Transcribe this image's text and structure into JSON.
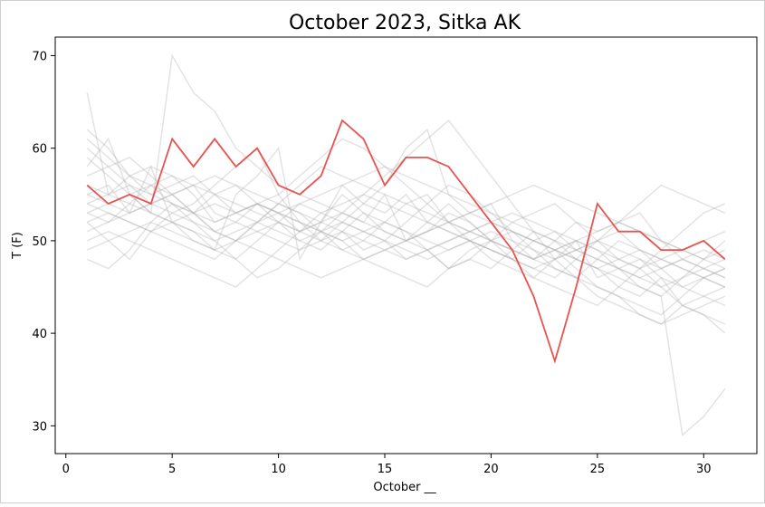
{
  "chart_data": {
    "type": "line",
    "title": "October 2023, Sitka AK",
    "xlabel": "October __",
    "ylabel": "T (F)",
    "xlim": [
      -0.5,
      32.5
    ],
    "ylim": [
      27,
      72
    ],
    "xticks": [
      0,
      5,
      10,
      15,
      20,
      25,
      30
    ],
    "yticks": [
      30,
      40,
      50,
      60,
      70
    ],
    "grid": false,
    "legend": "none",
    "colors": {
      "highlight": "#e8534f",
      "history": "#b0b0b0"
    },
    "x": [
      1,
      2,
      3,
      4,
      5,
      6,
      7,
      8,
      9,
      10,
      11,
      12,
      13,
      14,
      15,
      16,
      17,
      18,
      19,
      20,
      21,
      22,
      23,
      24,
      25,
      26,
      27,
      28,
      29,
      30,
      31
    ],
    "highlight_series": {
      "values": [
        56,
        54,
        55,
        54,
        61,
        58,
        61,
        58,
        60,
        56,
        55,
        57,
        63,
        61,
        56,
        59,
        59,
        58,
        55,
        52,
        49,
        44,
        37,
        45,
        54,
        51,
        51,
        49,
        49,
        50,
        48
      ]
    },
    "background_series": [
      {
        "values": [
          66,
          55,
          57,
          56,
          57,
          55,
          52,
          53,
          54,
          53,
          51,
          52,
          55,
          53,
          52,
          54,
          55,
          52,
          53,
          54,
          50,
          48,
          49,
          50,
          46,
          47,
          48,
          46,
          45,
          44,
          43
        ]
      },
      {
        "values": [
          48,
          47,
          49,
          52,
          54,
          53,
          55,
          56,
          54,
          53,
          52,
          50,
          51,
          49,
          50,
          48,
          49,
          47,
          48,
          47,
          49,
          51,
          50,
          48,
          47,
          45,
          44,
          46,
          43,
          42,
          40
        ]
      },
      {
        "values": [
          58,
          61,
          55,
          53,
          70,
          66,
          64,
          60,
          58,
          56,
          55,
          54,
          53,
          52,
          55,
          50,
          51,
          53,
          52,
          50,
          49,
          48,
          50,
          52,
          51,
          52,
          53,
          50,
          48,
          47,
          46
        ]
      },
      {
        "values": [
          55,
          56,
          53,
          58,
          52,
          51,
          49,
          55,
          57,
          60,
          48,
          52,
          56,
          54,
          53,
          55,
          52,
          51,
          50,
          49,
          48,
          50,
          51,
          49,
          50,
          48,
          47,
          45,
          43,
          42,
          41
        ]
      },
      {
        "values": [
          52,
          50,
          48,
          51,
          53,
          54,
          56,
          58,
          60,
          55,
          52,
          51,
          50,
          48,
          47,
          46,
          45,
          47,
          49,
          50,
          52,
          53,
          54,
          52,
          50,
          51,
          49,
          48,
          47,
          46,
          45
        ]
      },
      {
        "values": [
          62,
          60,
          57,
          58,
          57,
          56,
          53,
          52,
          51,
          50,
          49,
          50,
          52,
          54,
          56,
          60,
          62,
          55,
          53,
          52,
          51,
          50,
          49,
          48,
          47,
          46,
          45,
          44,
          29,
          31,
          34
        ]
      },
      {
        "values": [
          54,
          53,
          52,
          51,
          50,
          49,
          48,
          50,
          52,
          54,
          56,
          58,
          57,
          56,
          55,
          54,
          53,
          52,
          51,
          50,
          49,
          48,
          47,
          46,
          45,
          44,
          43,
          42,
          44,
          46,
          47
        ]
      },
      {
        "values": [
          57,
          58,
          59,
          57,
          55,
          53,
          51,
          52,
          54,
          55,
          57,
          59,
          61,
          60,
          58,
          56,
          54,
          52,
          50,
          48,
          47,
          46,
          45,
          44,
          43,
          45,
          47,
          49,
          51,
          53,
          54
        ]
      },
      {
        "values": [
          51,
          52,
          53,
          54,
          55,
          56,
          57,
          56,
          55,
          54,
          53,
          52,
          51,
          50,
          49,
          48,
          49,
          50,
          51,
          52,
          53,
          52,
          51,
          50,
          49,
          48,
          47,
          48,
          49,
          50,
          51
        ]
      },
      {
        "values": [
          59,
          57,
          55,
          53,
          52,
          50,
          49,
          48,
          50,
          52,
          54,
          53,
          52,
          51,
          50,
          52,
          54,
          56,
          55,
          53,
          51,
          50,
          49,
          47,
          45,
          44,
          42,
          41,
          43,
          44,
          45
        ]
      },
      {
        "values": [
          53,
          54,
          55,
          56,
          54,
          52,
          50,
          48,
          46,
          47,
          49,
          51,
          53,
          55,
          57,
          59,
          61,
          63,
          60,
          57,
          54,
          51,
          48,
          46,
          44,
          43,
          42,
          41,
          42,
          43,
          44
        ]
      },
      {
        "values": [
          50,
          51,
          50,
          49,
          48,
          47,
          46,
          45,
          47,
          49,
          51,
          53,
          54,
          55,
          54,
          53,
          52,
          51,
          50,
          49,
          48,
          47,
          46,
          48,
          50,
          52,
          54,
          56,
          55,
          54,
          53
        ]
      },
      {
        "values": [
          56,
          55,
          54,
          53,
          52,
          51,
          50,
          51,
          52,
          53,
          54,
          55,
          56,
          57,
          58,
          57,
          56,
          55,
          54,
          53,
          52,
          51,
          50,
          49,
          48,
          47,
          46,
          45,
          46,
          47,
          48
        ]
      },
      {
        "values": [
          60,
          58,
          56,
          54,
          53,
          52,
          51,
          50,
          49,
          48,
          47,
          46,
          47,
          48,
          49,
          50,
          51,
          52,
          53,
          54,
          55,
          56,
          55,
          54,
          53,
          52,
          51,
          50,
          49,
          48,
          47
        ]
      },
      {
        "values": [
          49,
          50,
          51,
          52,
          51,
          50,
          49,
          50,
          51,
          52,
          51,
          50,
          49,
          48,
          49,
          50,
          51,
          52,
          51,
          50,
          49,
          48,
          49,
          50,
          51,
          52,
          51,
          50,
          49,
          48,
          49
        ]
      },
      {
        "values": [
          52,
          53,
          52,
          51,
          52,
          53,
          54,
          53,
          52,
          51,
          50,
          51,
          52,
          51,
          50,
          49,
          48,
          49,
          50,
          49,
          48,
          47,
          48,
          49,
          48,
          47,
          46,
          47,
          48,
          47,
          46
        ]
      },
      {
        "values": [
          54,
          55,
          56,
          55,
          54,
          53,
          52,
          53,
          54,
          53,
          52,
          51,
          50,
          51,
          52,
          51,
          50,
          49,
          50,
          51,
          50,
          49,
          48,
          49,
          50,
          49,
          48,
          47,
          48,
          49,
          48
        ]
      },
      {
        "values": [
          61,
          59,
          57,
          55,
          56,
          57,
          55,
          53,
          54,
          52,
          50,
          49,
          51,
          53,
          51,
          50,
          52,
          54,
          52,
          50,
          48,
          46,
          48,
          50,
          49,
          47,
          45,
          44,
          46,
          48,
          50
        ]
      },
      {
        "values": [
          53,
          52,
          54,
          56,
          55,
          53,
          51,
          50,
          52,
          54,
          53,
          51,
          49,
          50,
          52,
          51,
          49,
          47,
          48,
          50,
          51,
          49,
          47,
          46,
          48,
          50,
          49,
          47,
          45,
          46,
          47
        ]
      },
      {
        "values": [
          55,
          54,
          53,
          54,
          55,
          56,
          55,
          54,
          53,
          52,
          51,
          52,
          53,
          52,
          51,
          50,
          49,
          50,
          51,
          52,
          51,
          50,
          49,
          48,
          47,
          48,
          49,
          48,
          47,
          46,
          45
        ]
      }
    ]
  }
}
